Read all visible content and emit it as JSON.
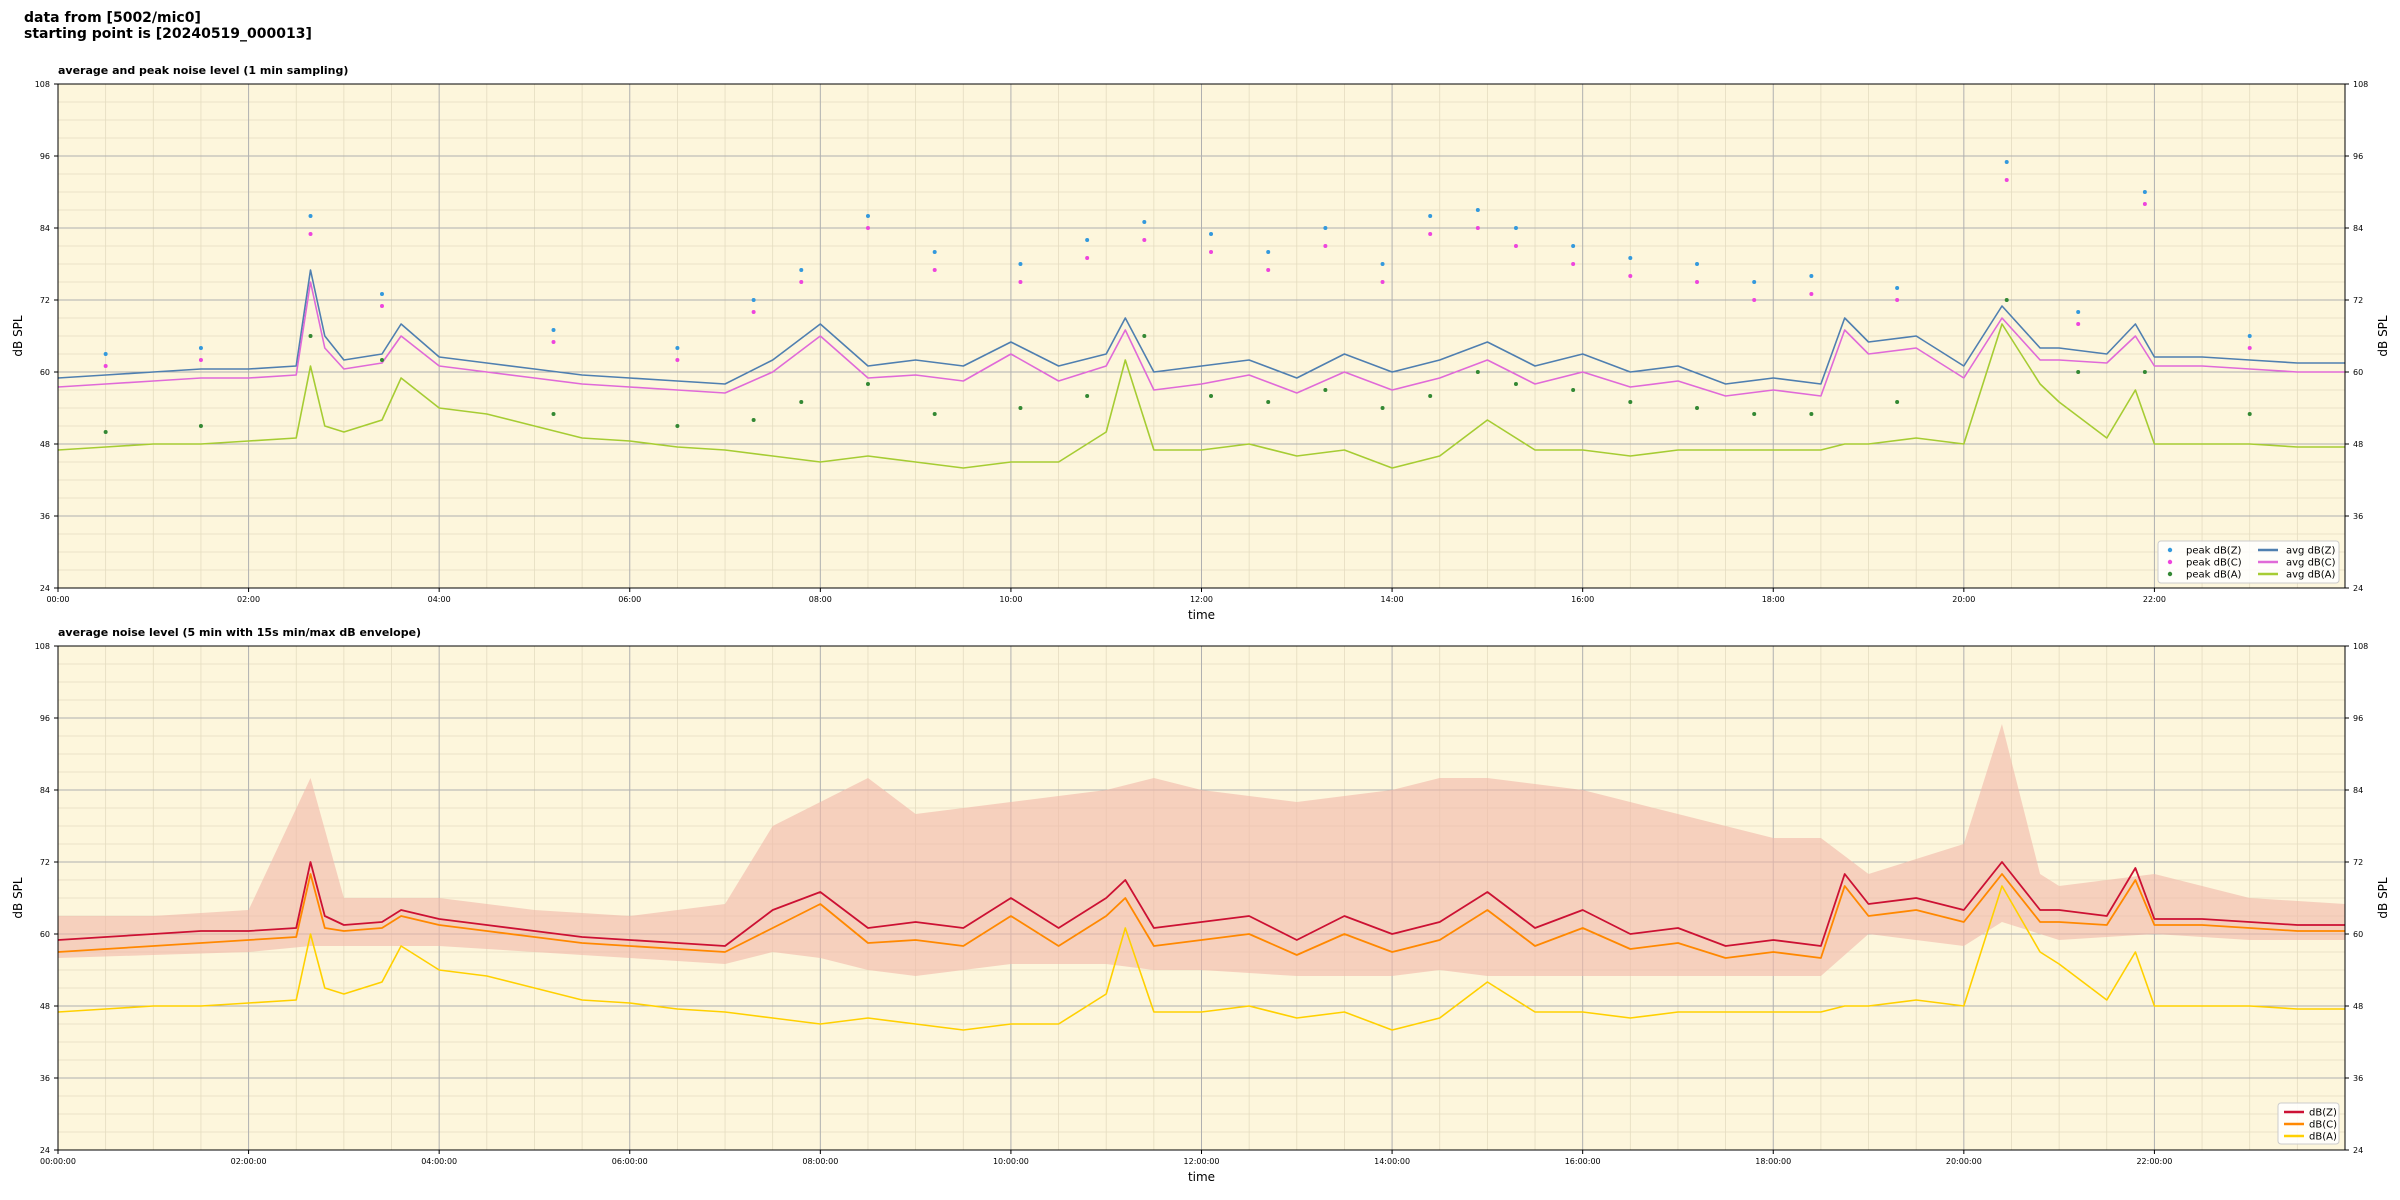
{
  "header": {
    "line1": "data from [5002/mic0]",
    "line2": "starting point is [20240519_000013]"
  },
  "colors": {
    "plot_bg": "#fdf6dc",
    "grid_major": "#b0b0b0",
    "grid_minor": "#e4dcc0",
    "avg_z": "#4f7fb0",
    "avg_c": "#e06ad8",
    "avg_a": "#a6cc33",
    "peak_z": "#3399dd",
    "peak_c": "#ee44dd",
    "peak_a": "#338833",
    "db_z": "#cc1133",
    "db_c": "#ff8800",
    "db_a": "#ffd000",
    "envelope": "#f2b8a8"
  },
  "chart_data": [
    {
      "type": "line",
      "title": "average and peak noise level (1 min sampling)",
      "xlabel": "time",
      "ylabel": "dB SPL",
      "ylim": [
        24,
        108
      ],
      "yticks": [
        "24",
        "36",
        "48",
        "60",
        "72",
        "84",
        "96",
        "108"
      ],
      "xlim_hours": [
        0,
        24
      ],
      "xticks": [
        "00:00",
        "02:00",
        "04:00",
        "06:00",
        "08:00",
        "10:00",
        "12:00",
        "14:00",
        "16:00",
        "18:00",
        "20:00",
        "22:00"
      ],
      "grid": true,
      "legend_position": "bottom-right",
      "legend": [
        "peak dB(Z)",
        "peak dB(C)",
        "peak dB(A)",
        "avg dB(Z)",
        "avg dB(C)",
        "avg dB(A)"
      ],
      "series": [
        {
          "name": "avg dB(Z)",
          "x": [
            0,
            0.5,
            1,
            1.5,
            2,
            2.5,
            2.65,
            2.8,
            3,
            3.4,
            3.6,
            4,
            4.5,
            5,
            5.5,
            6,
            6.5,
            7,
            7.5,
            8,
            8.5,
            9,
            9.5,
            10,
            10.5,
            11,
            11.2,
            11.5,
            12,
            12.5,
            13,
            13.5,
            14,
            14.5,
            15,
            15.5,
            16,
            16.5,
            17,
            17.5,
            18,
            18.5,
            18.75,
            19,
            19.5,
            20,
            20.4,
            20.8,
            21,
            21.5,
            21.8,
            22,
            22.5,
            23,
            23.5,
            24
          ],
          "values": [
            59,
            59.5,
            60,
            60.5,
            60.5,
            61,
            77,
            66,
            62,
            63,
            68,
            62.5,
            61.5,
            60.5,
            59.5,
            59,
            58.5,
            58,
            62,
            68,
            61,
            62,
            61,
            65,
            61,
            63,
            69,
            60,
            61,
            62,
            59,
            63,
            60,
            62,
            65,
            61,
            63,
            60,
            61,
            58,
            59,
            58,
            69,
            65,
            66,
            61,
            71,
            64,
            64,
            63,
            68,
            62.5,
            62.5,
            62,
            61.5,
            61.5
          ]
        },
        {
          "name": "avg dB(C)",
          "x": [
            0,
            0.5,
            1,
            1.5,
            2,
            2.5,
            2.65,
            2.8,
            3,
            3.4,
            3.6,
            4,
            4.5,
            5,
            5.5,
            6,
            6.5,
            7,
            7.5,
            8,
            8.5,
            9,
            9.5,
            10,
            10.5,
            11,
            11.2,
            11.5,
            12,
            12.5,
            13,
            13.5,
            14,
            14.5,
            15,
            15.5,
            16,
            16.5,
            17,
            17.5,
            18,
            18.5,
            18.75,
            19,
            19.5,
            20,
            20.4,
            20.8,
            21,
            21.5,
            21.8,
            22,
            22.5,
            23,
            23.5,
            24
          ],
          "values": [
            57.5,
            58,
            58.5,
            59,
            59,
            59.5,
            75,
            64,
            60.5,
            61.5,
            66,
            61,
            60,
            59,
            58,
            57.5,
            57,
            56.5,
            60,
            66,
            59,
            59.5,
            58.5,
            63,
            58.5,
            61,
            67,
            57,
            58,
            59.5,
            56.5,
            60,
            57,
            59,
            62,
            58,
            60,
            57.5,
            58.5,
            56,
            57,
            56,
            67,
            63,
            64,
            59,
            69,
            62,
            62,
            61.5,
            66,
            61,
            61,
            60.5,
            60,
            60
          ]
        },
        {
          "name": "avg dB(A)",
          "x": [
            0,
            0.5,
            1,
            1.5,
            2,
            2.5,
            2.65,
            2.8,
            3,
            3.4,
            3.6,
            4,
            4.5,
            5,
            5.5,
            6,
            6.5,
            7,
            7.5,
            8,
            8.5,
            9,
            9.5,
            10,
            10.5,
            11,
            11.2,
            11.5,
            12,
            12.5,
            13,
            13.5,
            14,
            14.5,
            15,
            15.5,
            16,
            16.5,
            17,
            17.5,
            18,
            18.5,
            18.75,
            19,
            19.5,
            20,
            20.4,
            20.8,
            21,
            21.5,
            21.8,
            22,
            22.5,
            23,
            23.5,
            24
          ],
          "values": [
            47,
            47.5,
            48,
            48,
            48.5,
            49,
            61,
            51,
            50,
            52,
            59,
            54,
            53,
            51,
            49,
            48.5,
            47.5,
            47,
            46,
            45,
            46,
            45,
            44,
            45,
            45,
            50,
            62,
            47,
            47,
            48,
            46,
            47,
            44,
            46,
            52,
            47,
            47,
            46,
            47,
            47,
            47,
            47,
            48,
            48,
            49,
            48,
            68,
            58,
            55,
            49,
            57,
            48,
            48,
            48,
            47.5,
            47.5
          ]
        },
        {
          "name": "peak dB(Z)",
          "x": [
            0.5,
            1.5,
            2.65,
            3.4,
            5.2,
            6.5,
            7.3,
            7.8,
            8.5,
            9.2,
            10.1,
            10.8,
            11.4,
            12.1,
            12.7,
            13.3,
            13.9,
            14.4,
            14.9,
            15.3,
            15.9,
            16.5,
            17.2,
            17.8,
            18.4,
            19.3,
            20.45,
            21.2,
            21.9,
            23
          ],
          "values": [
            63,
            64,
            86,
            73,
            67,
            64,
            72,
            77,
            86,
            80,
            78,
            82,
            85,
            83,
            80,
            84,
            78,
            86,
            87,
            84,
            81,
            79,
            78,
            75,
            76,
            74,
            95,
            70,
            90,
            66
          ]
        },
        {
          "name": "peak dB(C)",
          "x": [
            0.5,
            1.5,
            2.65,
            3.4,
            5.2,
            6.5,
            7.3,
            7.8,
            8.5,
            9.2,
            10.1,
            10.8,
            11.4,
            12.1,
            12.7,
            13.3,
            13.9,
            14.4,
            14.9,
            15.3,
            15.9,
            16.5,
            17.2,
            17.8,
            18.4,
            19.3,
            20.45,
            21.2,
            21.9,
            23
          ],
          "values": [
            61,
            62,
            83,
            71,
            65,
            62,
            70,
            75,
            84,
            77,
            75,
            79,
            82,
            80,
            77,
            81,
            75,
            83,
            84,
            81,
            78,
            76,
            75,
            72,
            73,
            72,
            92,
            68,
            88,
            64
          ]
        },
        {
          "name": "peak dB(A)",
          "x": [
            0.5,
            1.5,
            2.65,
            3.4,
            5.2,
            6.5,
            7.3,
            7.8,
            8.5,
            9.2,
            10.1,
            10.8,
            11.4,
            12.1,
            12.7,
            13.3,
            13.9,
            14.4,
            14.9,
            15.3,
            15.9,
            16.5,
            17.2,
            17.8,
            18.4,
            19.3,
            20.45,
            21.2,
            21.9,
            23
          ],
          "values": [
            50,
            51,
            66,
            62,
            53,
            51,
            52,
            55,
            58,
            53,
            54,
            56,
            66,
            56,
            55,
            57,
            54,
            56,
            60,
            58,
            57,
            55,
            54,
            53,
            53,
            55,
            72,
            60,
            60,
            53
          ]
        }
      ]
    },
    {
      "type": "line",
      "title": "average noise level (5 min with 15s min/max dB envelope)",
      "xlabel": "time",
      "ylabel": "dB SPL",
      "ylim": [
        24,
        108
      ],
      "yticks": [
        "24",
        "36",
        "48",
        "60",
        "72",
        "84",
        "96",
        "108"
      ],
      "xlim_hours": [
        0,
        24
      ],
      "xticks": [
        "00:00:00",
        "02:00:00",
        "04:00:00",
        "06:00:00",
        "08:00:00",
        "10:00:00",
        "12:00:00",
        "14:00:00",
        "16:00:00",
        "18:00:00",
        "20:00:00",
        "22:00:00"
      ],
      "grid": true,
      "legend_position": "bottom-right",
      "legend": [
        "dB(Z)",
        "dB(C)",
        "dB(A)"
      ],
      "series": [
        {
          "name": "dB(Z)",
          "x": [
            0,
            0.5,
            1,
            1.5,
            2,
            2.5,
            2.65,
            2.8,
            3,
            3.4,
            3.6,
            4,
            4.5,
            5,
            5.5,
            6,
            6.5,
            7,
            7.5,
            8,
            8.5,
            9,
            9.5,
            10,
            10.5,
            11,
            11.2,
            11.5,
            12,
            12.5,
            13,
            13.5,
            14,
            14.5,
            15,
            15.5,
            16,
            16.5,
            17,
            17.5,
            18,
            18.5,
            18.75,
            19,
            19.5,
            20,
            20.4,
            20.8,
            21,
            21.5,
            21.8,
            22,
            22.5,
            23,
            23.5,
            24
          ],
          "values": [
            59,
            59.5,
            60,
            60.5,
            60.5,
            61,
            72,
            63,
            61.5,
            62,
            64,
            62.5,
            61.5,
            60.5,
            59.5,
            59,
            58.5,
            58,
            64,
            67,
            61,
            62,
            61,
            66,
            61,
            66,
            69,
            61,
            62,
            63,
            59,
            63,
            60,
            62,
            67,
            61,
            64,
            60,
            61,
            58,
            59,
            58,
            70,
            65,
            66,
            64,
            72,
            64,
            64,
            63,
            71,
            62.5,
            62.5,
            62,
            61.5,
            61.5
          ]
        },
        {
          "name": "dB(C)",
          "x": [
            0,
            0.5,
            1,
            1.5,
            2,
            2.5,
            2.65,
            2.8,
            3,
            3.4,
            3.6,
            4,
            4.5,
            5,
            5.5,
            6,
            6.5,
            7,
            7.5,
            8,
            8.5,
            9,
            9.5,
            10,
            10.5,
            11,
            11.2,
            11.5,
            12,
            12.5,
            13,
            13.5,
            14,
            14.5,
            15,
            15.5,
            16,
            16.5,
            17,
            17.5,
            18,
            18.5,
            18.75,
            19,
            19.5,
            20,
            20.4,
            20.8,
            21,
            21.5,
            21.8,
            22,
            22.5,
            23,
            23.5,
            24
          ],
          "values": [
            57,
            57.5,
            58,
            58.5,
            59,
            59.5,
            70,
            61,
            60.5,
            61,
            63,
            61.5,
            60.5,
            59.5,
            58.5,
            58,
            57.5,
            57,
            61,
            65,
            58.5,
            59,
            58,
            63,
            58,
            63,
            66,
            58,
            59,
            60,
            56.5,
            60,
            57,
            59,
            64,
            58,
            61,
            57.5,
            58.5,
            56,
            57,
            56,
            68,
            63,
            64,
            62,
            70,
            62,
            62,
            61.5,
            69,
            61.5,
            61.5,
            61,
            60.5,
            60.5
          ]
        },
        {
          "name": "dB(A)",
          "x": [
            0,
            0.5,
            1,
            1.5,
            2,
            2.5,
            2.65,
            2.8,
            3,
            3.4,
            3.6,
            4,
            4.5,
            5,
            5.5,
            6,
            6.5,
            7,
            7.5,
            8,
            8.5,
            9,
            9.5,
            10,
            10.5,
            11,
            11.2,
            11.5,
            12,
            12.5,
            13,
            13.5,
            14,
            14.5,
            15,
            15.5,
            16,
            16.5,
            17,
            17.5,
            18,
            18.5,
            18.75,
            19,
            19.5,
            20,
            20.4,
            20.8,
            21,
            21.5,
            21.8,
            22,
            22.5,
            23,
            23.5,
            24
          ],
          "values": [
            47,
            47.5,
            48,
            48,
            48.5,
            49,
            60,
            51,
            50,
            52,
            58,
            54,
            53,
            51,
            49,
            48.5,
            47.5,
            47,
            46,
            45,
            46,
            45,
            44,
            45,
            45,
            50,
            61,
            47,
            47,
            48,
            46,
            47,
            44,
            46,
            52,
            47,
            47,
            46,
            47,
            47,
            47,
            47,
            48,
            48,
            49,
            48,
            68,
            57,
            55,
            49,
            57,
            48,
            48,
            48,
            47.5,
            47.5
          ]
        },
        {
          "name": "envelope max",
          "x": [
            0,
            1,
            2,
            2.65,
            3,
            4,
            5,
            6,
            7,
            7.5,
            8,
            8.5,
            9,
            10,
            11,
            11.5,
            12,
            13,
            14,
            14.5,
            15,
            16,
            17,
            18,
            18.5,
            19,
            20,
            20.4,
            20.8,
            21,
            22,
            23,
            24
          ],
          "values": [
            63,
            63,
            64,
            86,
            66,
            66,
            64,
            63,
            65,
            78,
            82,
            86,
            80,
            82,
            84,
            86,
            84,
            82,
            84,
            86,
            86,
            84,
            80,
            76,
            76,
            70,
            75,
            95,
            70,
            68,
            70,
            66,
            65
          ]
        },
        {
          "name": "envelope min",
          "x": [
            0,
            1,
            2,
            2.65,
            3,
            4,
            5,
            6,
            7,
            7.5,
            8,
            8.5,
            9,
            10,
            11,
            11.5,
            12,
            13,
            14,
            14.5,
            15,
            16,
            17,
            18,
            18.5,
            19,
            20,
            20.4,
            20.8,
            21,
            22,
            23,
            24
          ],
          "values": [
            56,
            56.5,
            57,
            58,
            58,
            58,
            57,
            56,
            55,
            57,
            56,
            54,
            53,
            55,
            55,
            54,
            54,
            53,
            53,
            54,
            53,
            53,
            53,
            53,
            53,
            60,
            58,
            62,
            60,
            59,
            60,
            59,
            59
          ]
        }
      ]
    }
  ]
}
